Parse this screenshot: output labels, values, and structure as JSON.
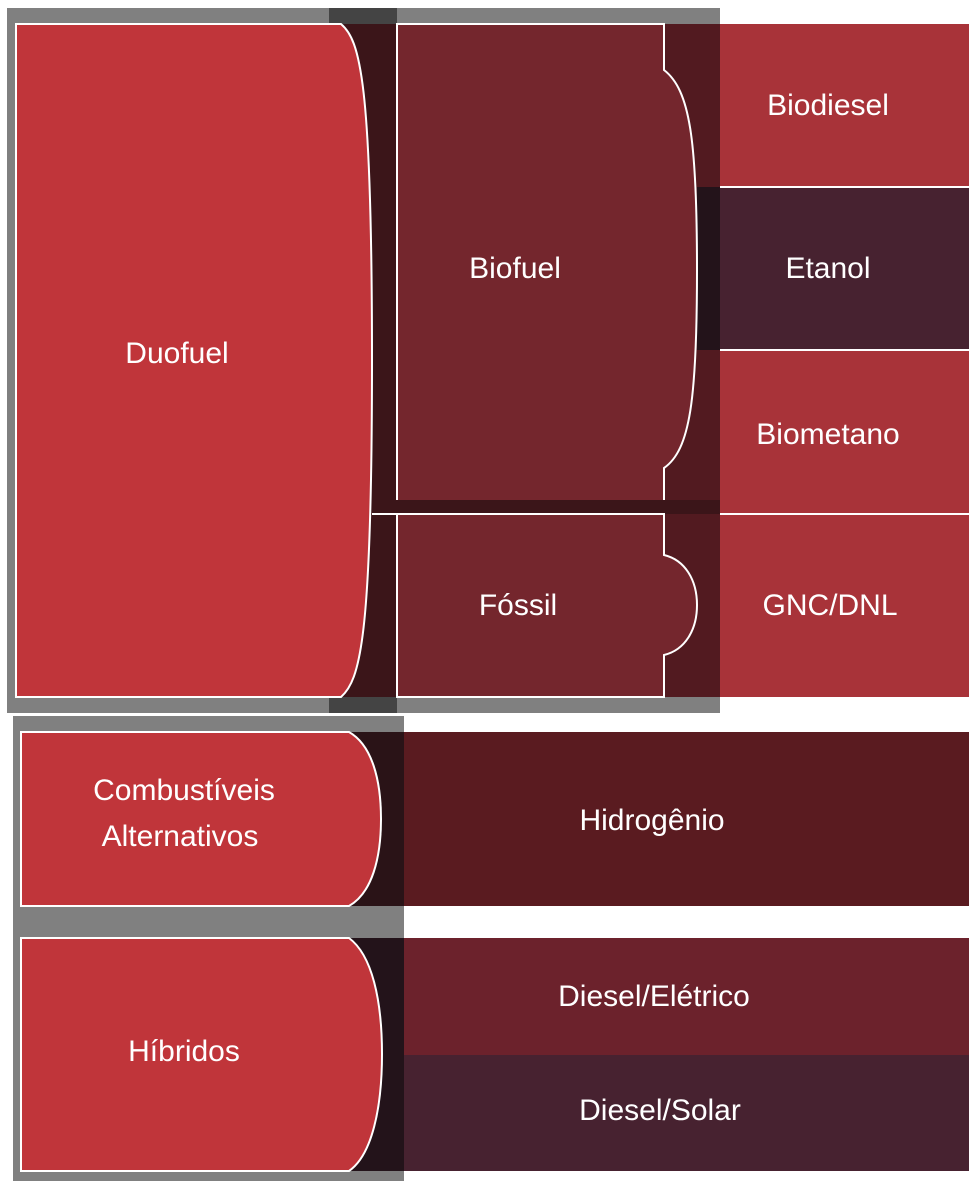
{
  "nodes": [
    {
      "label": "Duofuel"
    },
    {
      "label": "Biofuel"
    },
    {
      "label": "Fóssil"
    },
    {
      "label": "Biodiesel"
    },
    {
      "label": "Etanol"
    },
    {
      "label": "Biometano"
    },
    {
      "label": "GNC/DNL"
    },
    {
      "label": [
        "Combustíveis",
        "Alternativos"
      ]
    },
    {
      "label": "Hidrogênio"
    },
    {
      "label": "Híbridos"
    },
    {
      "label": "Diesel/Elétrico"
    },
    {
      "label": "Diesel/Solar"
    }
  ]
}
